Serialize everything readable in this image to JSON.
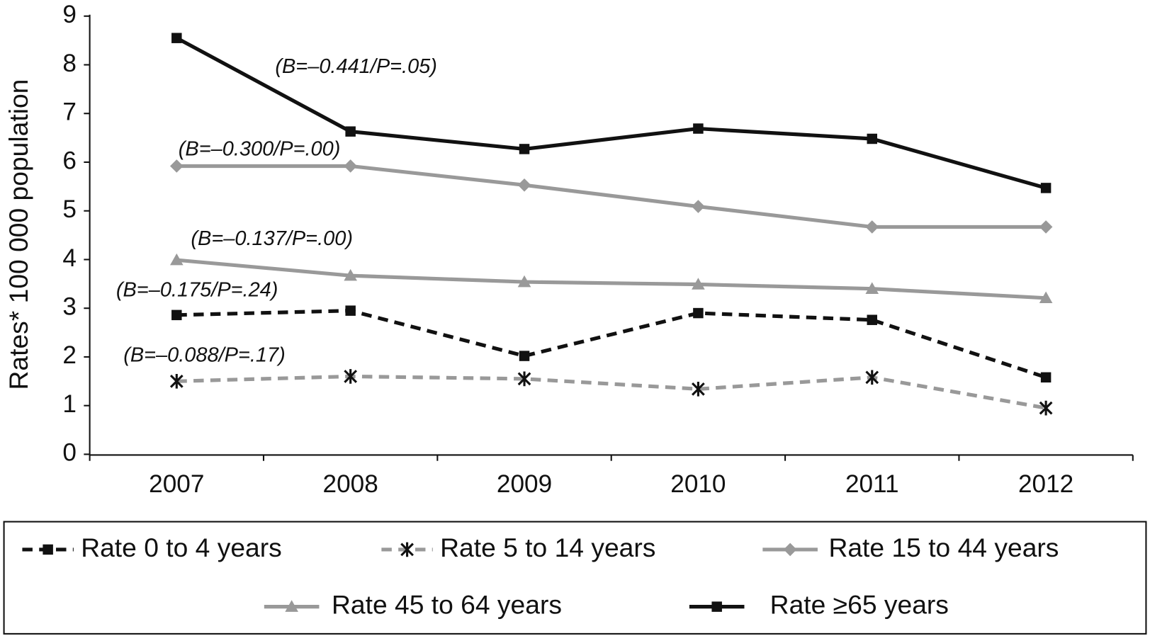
{
  "chart_data": {
    "type": "line",
    "y_label": "Rates* 100 000 population",
    "categories": [
      "2007",
      "2008",
      "2009",
      "2010",
      "2011",
      "2012"
    ],
    "series": [
      {
        "name": "Rate 0 to 4 years",
        "color": "#111111",
        "dashed": true,
        "marker": "square",
        "values": [
          2.86,
          2.95,
          2.02,
          2.9,
          2.76,
          1.58
        ]
      },
      {
        "name": "Rate 5 to 14 years",
        "color": "#999999",
        "dashed": true,
        "marker": "asterisk",
        "values": [
          1.5,
          1.6,
          1.55,
          1.34,
          1.58,
          0.95
        ]
      },
      {
        "name": "Rate 15 to 44 years",
        "color": "#999999",
        "dashed": false,
        "marker": "diamond",
        "values": [
          5.92,
          5.92,
          5.53,
          5.09,
          4.67,
          4.67
        ]
      },
      {
        "name": "Rate 45 to 64 years",
        "color": "#999999",
        "dashed": false,
        "marker": "triangle",
        "values": [
          3.99,
          3.67,
          3.54,
          3.49,
          3.4,
          3.21
        ]
      },
      {
        "name": "Rate ≥65 years",
        "color": "#111111",
        "dashed": false,
        "marker": "square",
        "values": [
          8.55,
          6.63,
          6.27,
          6.69,
          6.48,
          5.47
        ]
      }
    ],
    "annotations": [
      "(B=–0.441/P=.05)",
      "(B=–0.300/P=.00)",
      "(B=–0.137/P=.00)",
      "(B=–0.175/P=.24)",
      "(B=–0.088/P=.17)"
    ],
    "ylim": [
      0,
      9
    ],
    "yticks": [
      0,
      1,
      2,
      3,
      4,
      5,
      6,
      7,
      8,
      9
    ]
  }
}
